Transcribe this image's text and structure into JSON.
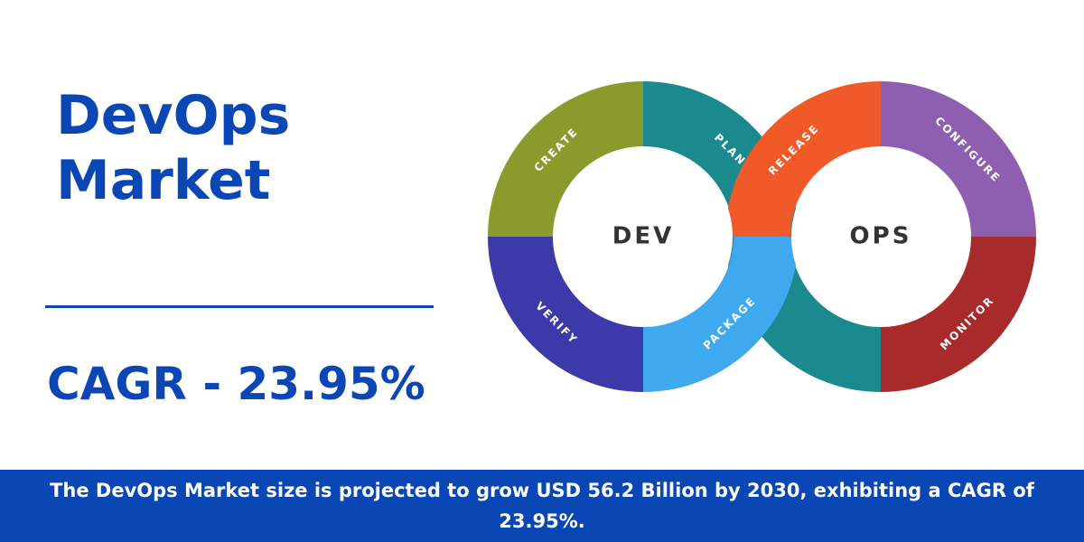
{
  "title": {
    "line1": "DevOps",
    "line2": "Market"
  },
  "cagr": "CAGR - 23.95%",
  "diagram": {
    "left_ring": {
      "label": "DEV",
      "segments": [
        "CREATE",
        "PLAN",
        "PACKAGE",
        "VERIFY"
      ]
    },
    "right_ring": {
      "label": "OPS",
      "segments": [
        "RELEASE",
        "CONFIGURE",
        "MONITOR"
      ]
    }
  },
  "footer": "The DevOps Market size is projected to grow USD 56.2 Billion by 2030, exhibiting a CAGR of 23.95%."
}
